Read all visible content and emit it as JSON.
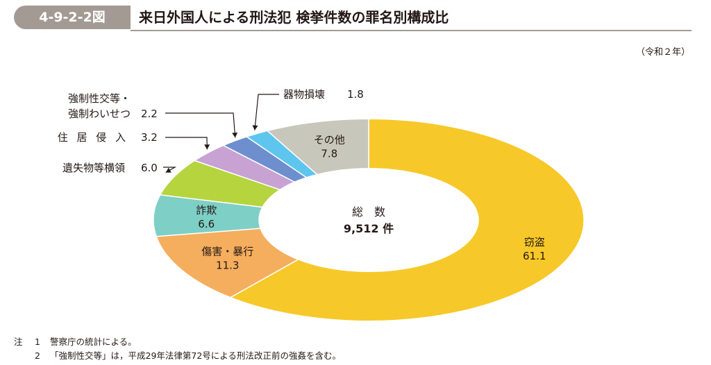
{
  "figure": {
    "id": "4-9-2-2図",
    "title": "来日外国人による刑法犯 検挙件数の罪名別構成比",
    "year_note": "（令和２年）"
  },
  "chart_data": {
    "type": "pie",
    "variant": "donut",
    "center_label_line1": "総　数",
    "center_label_line2": "9,512 件",
    "slices": [
      {
        "label": "窃盗",
        "value_text": "61.1",
        "value": 61.1,
        "color": "#f7c829"
      },
      {
        "label": "傷害・暴行",
        "value_text": "11.3",
        "value": 11.3,
        "color": "#f5ae5e"
      },
      {
        "label": "詐欺",
        "value_text": "6.6",
        "value": 6.6,
        "color": "#7ecfc6"
      },
      {
        "label": "遺失物等横領",
        "value_text": "6.0",
        "value": 6.0,
        "color": "#b6d43e"
      },
      {
        "label": "住 居 侵 入",
        "value_text": "3.2",
        "value": 3.2,
        "color": "#c7a2d2"
      },
      {
        "label_lines": [
          "強制性交等・",
          "強制わいせつ"
        ],
        "value_text": "2.2",
        "value": 2.2,
        "color": "#6d8fce"
      },
      {
        "label": "器物損壊",
        "value_text": "1.8",
        "value": 1.8,
        "color": "#5ec5ef"
      },
      {
        "label": "その他",
        "value_text": "7.8",
        "value": 7.8,
        "color": "#c8c7bb"
      }
    ]
  },
  "notes": [
    {
      "mark": "注",
      "num": "1",
      "text": "警察庁の統計による。"
    },
    {
      "mark": "",
      "num": "2",
      "text": "「強制性交等」は，平成29年法律第72号による刑法改正前の強姦を含む。"
    }
  ]
}
